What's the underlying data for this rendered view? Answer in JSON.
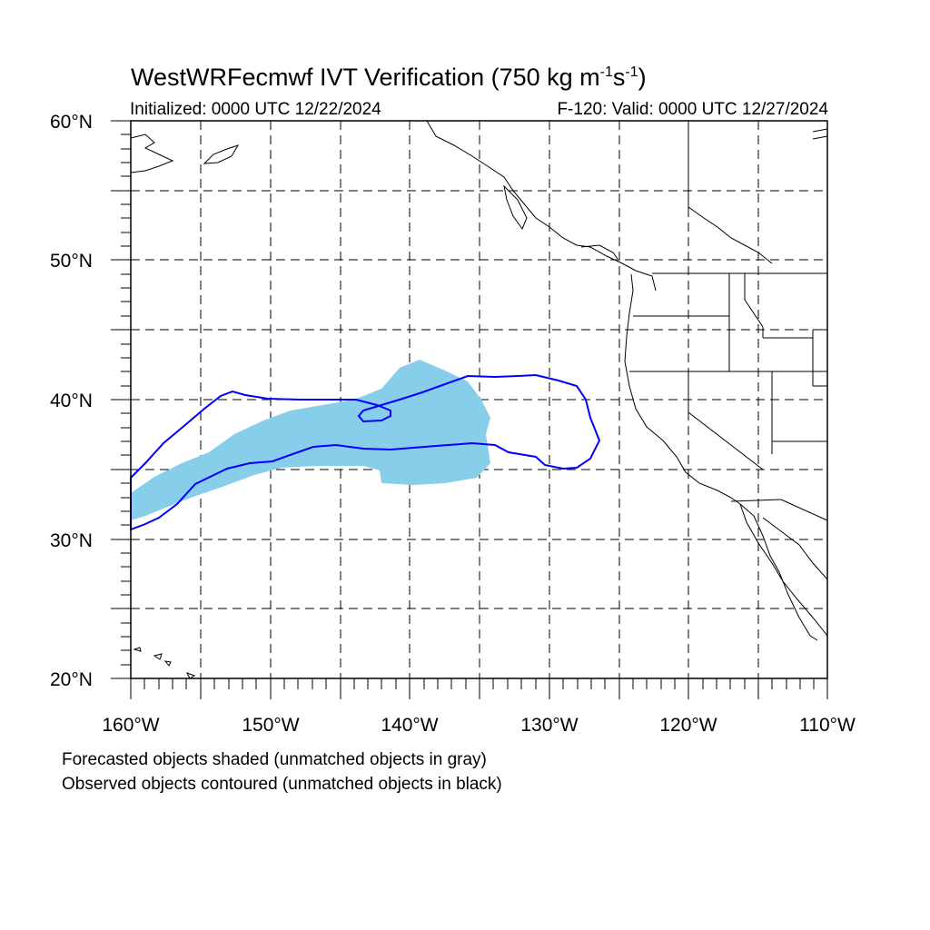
{
  "title": {
    "main": "WestWRFecmwf IVT Verification (750 kg m",
    "exp1": "-1",
    "mid": "s",
    "exp2": "-1",
    "end": ")"
  },
  "init_label": "Initialized: 0000 UTC 12/22/2024",
  "valid_label": "F-120: Valid: 0000 UTC 12/27/2024",
  "lat_labels": [
    "60°N",
    "50°N",
    "40°N",
    "30°N",
    "20°N"
  ],
  "lon_labels": [
    "160°W",
    "150°W",
    "140°W",
    "130°W",
    "120°W",
    "110°W"
  ],
  "captions": {
    "line1": "Forecasted objects shaded (unmatched objects in gray)",
    "line2": "Observed objects contoured (unmatched objects in black)"
  },
  "colors": {
    "forecast_fill": "#87ceeb",
    "observed_contour": "#0000ff",
    "coastline": "#000000",
    "grid": "#000000"
  },
  "map": {
    "projection": "cylindrical equidistant",
    "lon_range": [
      -160,
      -110
    ],
    "lat_range": [
      20,
      60
    ],
    "grid": "dashed, 5 degree"
  }
}
